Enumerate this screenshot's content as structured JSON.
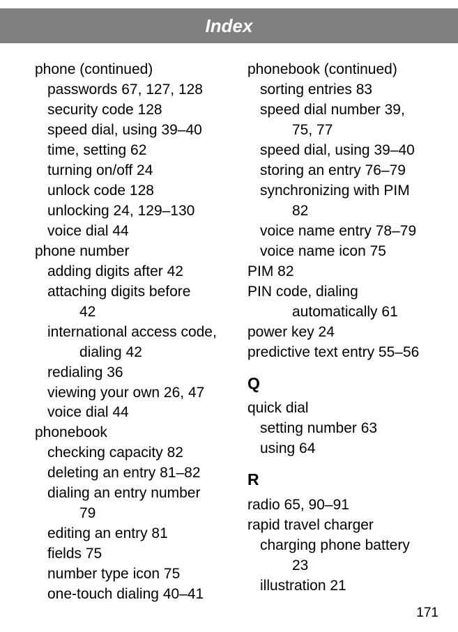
{
  "header": {
    "title": "Index"
  },
  "pageNumber": "171",
  "left": {
    "phone_cont": "phone (continued)",
    "passwords": "passwords  67, 127, 128",
    "security_code": "security code  128",
    "speed_dial_using": "speed dial, using  39–40",
    "time_setting": "time, setting  62",
    "turning_onoff": "turning on/off  24",
    "unlock_code": "unlock code  128",
    "unlocking": "unlocking  24, 129–130",
    "voice_dial": "voice dial  44",
    "phone_number": "phone number",
    "adding_digits_after": "adding digits after  42",
    "attaching_digits_before": "attaching digits before",
    "attaching_digits_before_pg": "42",
    "intl_access_code": "international access code,",
    "intl_access_code_2": "dialing  42",
    "redialing": "redialing  36",
    "viewing_your_own": "viewing your own  26, 47",
    "voice_dial2": "voice dial  44",
    "phonebook": "phonebook",
    "checking_capacity": "checking capacity  82",
    "deleting_entry": "deleting an entry  81–82",
    "dialing_entry_number": "dialing an entry number",
    "dialing_entry_number_pg": "79",
    "editing_entry": "editing an entry  81",
    "fields": "fields  75",
    "number_type_icon": "number type icon  75",
    "one_touch_dialing": "one-touch dialing  40–41"
  },
  "right": {
    "phonebook_cont": "phonebook (continued)",
    "sorting_entries": "sorting entries  83",
    "speed_dial_number": "speed dial number  39,",
    "speed_dial_number_pg": "75, 77",
    "speed_dial_using": "speed dial, using  39–40",
    "storing_entry": "storing an entry  76–79",
    "sync_pim": "synchronizing with PIM",
    "sync_pim_pg": "82",
    "voice_name_entry": "voice name entry  78–79",
    "voice_name_icon": "voice name icon  75",
    "pim": "PIM  82",
    "pin_code": "PIN code, dialing",
    "pin_code_2": "automatically  61",
    "power_key": "power key  24",
    "predictive_text": "predictive text entry  55–56",
    "letter_q": "Q",
    "quick_dial": "quick dial",
    "setting_number": "setting number  63",
    "using": "using  64",
    "letter_r": "R",
    "radio": "radio  65, 90–91",
    "rapid_travel_charger": "rapid travel charger",
    "charging_battery": "charging phone battery",
    "charging_battery_pg": "23",
    "illustration": "illustration  21"
  }
}
